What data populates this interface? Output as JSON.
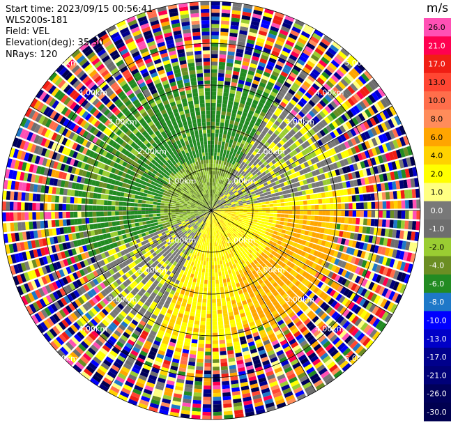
{
  "header": {
    "start_time": "Start time: 2023/09/15 00:56:41",
    "site": "WLS200s-181",
    "field": "Field: VEL",
    "elevation": "Elevation(deg): 35.30",
    "nrays": "NRays: 120"
  },
  "chart_data": {
    "type": "ppi-radar",
    "field": "VEL",
    "n_rays": 120,
    "range_rings_km": [
      1,
      2,
      3,
      4,
      5
    ],
    "ring_labels": [
      "1.00km",
      "2.00km",
      "3.00km",
      "4.00km",
      "5.00km"
    ],
    "radial_lines_deg": [
      0,
      30,
      60,
      90,
      120,
      150,
      180,
      210,
      240,
      270,
      300,
      330
    ],
    "velocity_pattern": [
      {
        "azimuth_range_deg": [
          225,
          45
        ],
        "velocity_ms": -6,
        "description": "green (approaching) NW half"
      },
      {
        "azimuth_range_deg": [
          45,
          225
        ],
        "velocity_ms": 3,
        "description": "yellow/orange (receding) SE half"
      },
      {
        "azimuth_range_deg": [
          30,
          80
        ],
        "velocity_ms": 0,
        "description": "grey near-zero band NE"
      },
      {
        "azimuth_range_deg": [
          205,
          250
        ],
        "velocity_ms": 0,
        "description": "grey near-zero band SW"
      }
    ],
    "colorbar": {
      "unit": "m/s",
      "ticks": [
        "26.0",
        "21.0",
        "17.0",
        "13.0",
        "10.0",
        "8.0",
        "6.0",
        "4.0",
        "2.0",
        "1.0",
        "0.0",
        "-1.0",
        "-2.0",
        "-4.0",
        "-6.0",
        "-8.0",
        "-10.0",
        "-13.0",
        "-17.0",
        "-21.0",
        "-26.0",
        "-30.0"
      ],
      "colors": [
        "#ff50b4",
        "#ff0050",
        "#f01e14",
        "#ff4632",
        "#ff6e4b",
        "#ff8c5a",
        "#ffa500",
        "#ffd200",
        "#ffff00",
        "#ffff82",
        "#787878",
        "#6e6e6e",
        "#9acd32",
        "#6b8e23",
        "#228b22",
        "#1e78c8",
        "#0000ff",
        "#0000c8",
        "#00008c",
        "#000078",
        "#00005a",
        "#000050"
      ]
    }
  }
}
